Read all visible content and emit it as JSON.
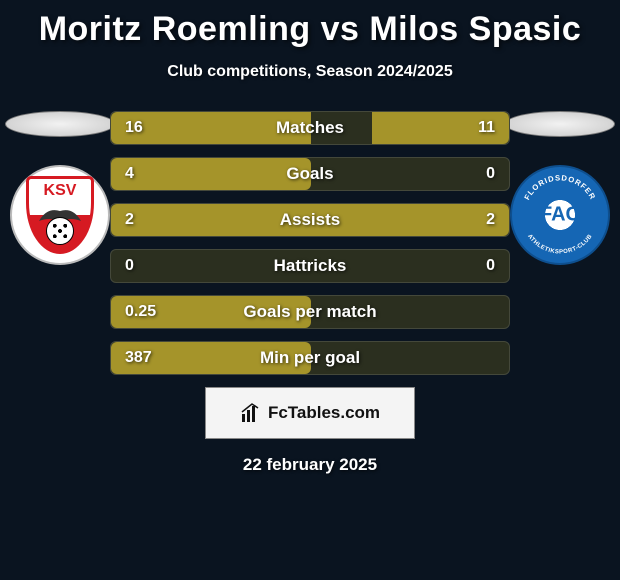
{
  "title": "Moritz Roemling vs Milos Spasic",
  "subtitle": "Club competitions, Season 2024/2025",
  "date": "22 february 2025",
  "footer_label": "FcTables.com",
  "colors": {
    "background": "#0a1420",
    "bar_fill": "#a5942a",
    "bar_track": "#2b2f1f",
    "text": "#ffffff",
    "badge_left_primary": "#d61a22",
    "badge_right_primary": "#1566b4",
    "footer_bg": "#f4f4f4",
    "footer_text": "#111111"
  },
  "typography": {
    "title_fontsize": 34,
    "title_fontweight": 800,
    "subtitle_fontsize": 16,
    "stat_label_fontsize": 17,
    "stat_value_fontsize": 16,
    "date_fontsize": 17
  },
  "layout": {
    "stat_row_height": 34,
    "stat_row_gap": 12,
    "stats_width": 400,
    "bar_half_width": 200,
    "badge_diameter": 100
  },
  "left": {
    "badge_text": "KSV"
  },
  "right": {
    "badge_text": "FAC",
    "badge_ring_top": "FLORIDSDORFER",
    "badge_ring_bottom": "ATHLETIKSPORT-CLUB"
  },
  "stats": [
    {
      "label": "Matches",
      "left_value": "16",
      "left_pct": 100,
      "right_value": "11",
      "right_pct": 68.75
    },
    {
      "label": "Goals",
      "left_value": "4",
      "left_pct": 100,
      "right_value": "0",
      "right_pct": 0
    },
    {
      "label": "Assists",
      "left_value": "2",
      "left_pct": 100,
      "right_value": "2",
      "right_pct": 100
    },
    {
      "label": "Hattricks",
      "left_value": "0",
      "left_pct": 0,
      "right_value": "0",
      "right_pct": 0
    },
    {
      "label": "Goals per match",
      "left_value": "0.25",
      "left_pct": 100,
      "right_value": "",
      "right_pct": 0
    },
    {
      "label": "Min per goal",
      "left_value": "387",
      "left_pct": 100,
      "right_value": "",
      "right_pct": 0
    }
  ]
}
